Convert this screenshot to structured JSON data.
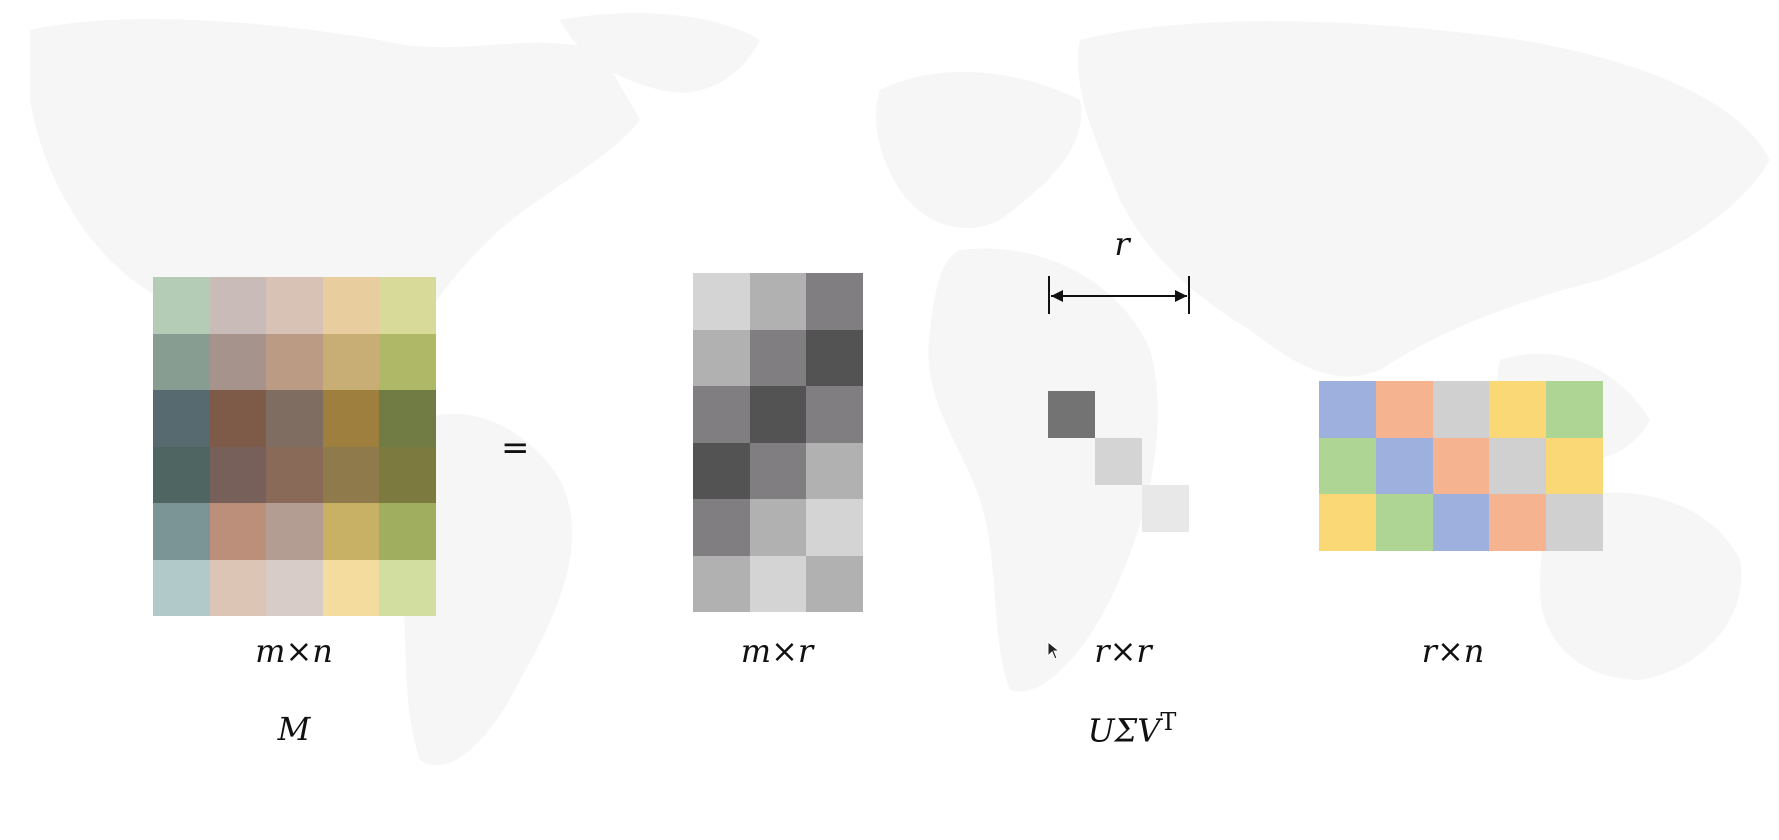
{
  "equation": {
    "equals_sign": "=",
    "matrix_M": {
      "dim_label": "m×n",
      "name_label": "M",
      "rows": 6,
      "cols": 5,
      "colors": [
        [
          "#b4cbb5",
          "#c9bbb8",
          "#d8c2b6",
          "#e8cd9e",
          "#d7da99"
        ],
        [
          "#889d91",
          "#a6938b",
          "#bb9b83",
          "#c8ad75",
          "#aeb866"
        ],
        [
          "#566a70",
          "#7e5a48",
          "#806d62",
          "#9f7f3d",
          "#707c43"
        ],
        [
          "#4e6561",
          "#766059",
          "#896a59",
          "#8e7a4b",
          "#7d7a40"
        ],
        [
          "#7b9597",
          "#bc8f7b",
          "#b39c91",
          "#c8b064",
          "#9faf5f"
        ],
        [
          "#b1c9c8",
          "#ddc5b5",
          "#d8ccc8",
          "#f3dc9d",
          "#d1de9f"
        ]
      ]
    },
    "matrix_U": {
      "dim_label": "m×r",
      "rows": 6,
      "cols": 3,
      "colors": [
        [
          "#d4d4d4",
          "#b1b1b1",
          "#807e80"
        ],
        [
          "#b1b1b1",
          "#807e80",
          "#545354"
        ],
        [
          "#807e80",
          "#545354",
          "#807e80"
        ],
        [
          "#545354",
          "#807e80",
          "#b1b1b1"
        ],
        [
          "#807e80",
          "#b1b1b1",
          "#d4d4d4"
        ],
        [
          "#b1b1b1",
          "#d4d4d4",
          "#b1b1b1"
        ]
      ]
    },
    "matrix_Sigma": {
      "dim_label": "r×r",
      "width_label": "r",
      "diagonal_colors": [
        "#747374",
        "#d4d4d4",
        "#e8e8e8"
      ]
    },
    "matrix_Vt": {
      "dim_label": "r×n",
      "rows": 3,
      "cols": 5,
      "colors": [
        [
          "#9db0de",
          "#f5b48f",
          "#d0d0d0",
          "#fbd876",
          "#afd594"
        ],
        [
          "#afd594",
          "#9db0de",
          "#f5b48f",
          "#d0d0d0",
          "#fbd876"
        ],
        [
          "#fbd876",
          "#afd594",
          "#9db0de",
          "#f5b48f",
          "#d0d0d0"
        ]
      ]
    },
    "decomposition_label": {
      "main": "UΣV",
      "superscript": "T"
    }
  }
}
